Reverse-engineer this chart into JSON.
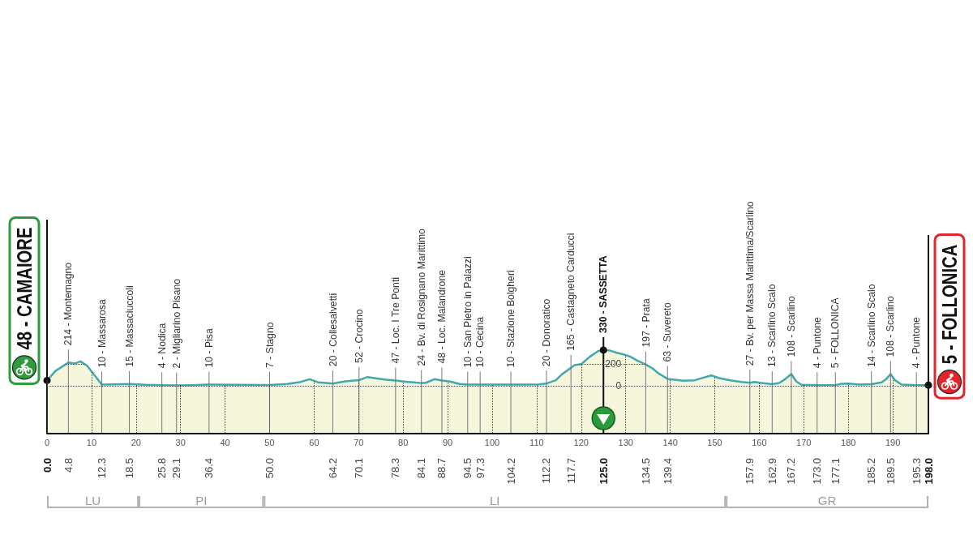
{
  "chart_data": {
    "type": "area",
    "color": "#f5f6dc",
    "x": [
      0,
      2,
      4.8,
      6.2,
      7.5,
      9,
      11,
      12.3,
      15,
      18.5,
      22,
      25.8,
      29.1,
      33,
      36.4,
      42,
      48,
      50,
      54,
      57,
      59,
      61,
      64.2,
      67,
      70.1,
      72,
      74.5,
      76.3,
      78.3,
      81,
      84.1,
      85,
      87,
      88.7,
      90.3,
      92.7,
      94.5,
      97.3,
      100,
      104.2,
      108,
      110.5,
      112.2,
      114.3,
      115.8,
      117.7,
      118.5,
      120,
      122,
      123.8,
      125,
      126.5,
      128,
      129.5,
      131,
      132.5,
      134.5,
      136,
      137.5,
      139.4,
      141,
      143,
      145.5,
      147.5,
      149.2,
      151,
      153.5,
      156,
      157.9,
      159,
      160.5,
      162.9,
      164.5,
      165.8,
      167.2,
      168.3,
      169.5,
      173,
      175,
      177.1,
      178.5,
      180,
      182.5,
      185.2,
      187.5,
      188.5,
      189.5,
      190.5,
      192,
      195.3,
      198
    ],
    "values": [
      48,
      140,
      214,
      205,
      225,
      185,
      80,
      10,
      12,
      15,
      8,
      4,
      2,
      5,
      10,
      8,
      6,
      7,
      15,
      35,
      60,
      30,
      20,
      40,
      52,
      80,
      65,
      55,
      47,
      35,
      24,
      25,
      60,
      48,
      40,
      15,
      10,
      10,
      10,
      10,
      10,
      12,
      20,
      50,
      110,
      165,
      190,
      200,
      270,
      320,
      330,
      325,
      305,
      290,
      270,
      235,
      197,
      160,
      110,
      63,
      55,
      45,
      50,
      75,
      95,
      70,
      50,
      35,
      27,
      35,
      25,
      13,
      25,
      60,
      108,
      40,
      8,
      4,
      5,
      5,
      18,
      20,
      10,
      14,
      30,
      60,
      108,
      50,
      10,
      4,
      5
    ],
    "xlim": [
      0,
      198
    ],
    "xticks": [
      0,
      10,
      20,
      30,
      40,
      50,
      60,
      70,
      80,
      90,
      100,
      110,
      120,
      130,
      140,
      150,
      160,
      170,
      180,
      190
    ],
    "ylim": [
      -445,
      1540
    ],
    "yticks": [
      0,
      200
    ],
    "x2lim": [
      0,
      198
    ],
    "x2ticks": [
      {
        "value": 0,
        "label": "0.0"
      },
      4.8,
      12.3,
      18.5,
      25.8,
      29.1,
      36.4,
      {
        "value": 50,
        "label": "50.0"
      },
      64.2,
      70.1,
      78.3,
      84.1,
      88.7,
      94.5,
      97.3,
      104.2,
      112.2,
      117.7,
      {
        "value": 125,
        "label": "125.0"
      },
      134.5,
      139.4,
      157.9,
      162.9,
      167.2,
      {
        "value": 173,
        "label": "173.0"
      },
      177.1,
      185.2,
      189.5,
      195.3,
      {
        "value": 198,
        "label": "198.0"
      }
    ],
    "grid": true,
    "annotations": [
      {
        "text": "48 - CAMAIORE",
        "x": 0,
        "y": 48
      },
      {
        "text": "214 - Montemagno",
        "x": 4.8,
        "y": 214
      },
      {
        "text": "10 - Massarosa",
        "x": 12.3,
        "y": 10
      },
      {
        "text": "15 - Massaciuccoli",
        "x": 18.5,
        "y": 15
      },
      {
        "text": "4 - Nodica",
        "x": 25.8,
        "y": 4
      },
      {
        "text": "2 - Migliarino Pisano",
        "x": 29.1,
        "y": 2
      },
      {
        "text": "10 - Pisa",
        "x": 36.4,
        "y": 10
      },
      {
        "text": "7 - Stagno",
        "x": 50,
        "y": 7
      },
      {
        "text": "20 - Collesalvetti",
        "x": 64.2,
        "y": 20
      },
      {
        "text": "52 - Crocino",
        "x": 70.1,
        "y": 52
      },
      {
        "text": "47 - Loc. I Tre Ponti",
        "x": 78.3,
        "y": 47
      },
      {
        "text": "24 - Bv. di Rosignano Marittimo",
        "x": 84.1,
        "y": 24
      },
      {
        "text": "48 - Loc. Malandrone",
        "x": 88.7,
        "y": 48
      },
      {
        "text": "10 - San Pietro in Palazzi",
        "x": 94.5,
        "y": 10
      },
      {
        "text": "10 - Cecina",
        "x": 97.3,
        "y": 10
      },
      {
        "text": "10 - Stazione Bolgheri",
        "x": 104.2,
        "y": 10
      },
      {
        "text": "20 - Donoratico",
        "x": 112.2,
        "y": 20
      },
      {
        "text": "165 - Castagneto Carducci",
        "x": 117.7,
        "y": 165
      },
      {
        "text": "330 - SASSETTA",
        "x": 125,
        "y": 330
      },
      {
        "text": "197 - Prata",
        "x": 134.5,
        "y": 197
      },
      {
        "text": "63 - Suvereto",
        "x": 139.4,
        "y": 63
      },
      {
        "text": "27 - Bv. per Massa Marittima/Scarlino",
        "x": 157.9,
        "y": 27
      },
      {
        "text": "13 - Scarlino Scalo",
        "x": 162.9,
        "y": 13
      },
      {
        "text": "108 - Scarlino",
        "x": 167.2,
        "y": 108
      },
      {
        "text": "4 - Puntone",
        "x": 173,
        "y": 4
      },
      {
        "text": "5 - FOLLONICA",
        "x": 177.1,
        "y": 5
      },
      {
        "text": "14 - Scarlino Scalo",
        "x": 185.2,
        "y": 14
      },
      {
        "text": "108 - Scarlino",
        "x": 189.5,
        "y": 108
      },
      {
        "text": "4 - Puntone",
        "x": 195.3,
        "y": 4
      },
      {
        "text": "5 - FOLLONICA",
        "x": 198,
        "y": 5
      },
      "LU",
      "PI",
      "LI",
      "GR"
    ]
  }
}
